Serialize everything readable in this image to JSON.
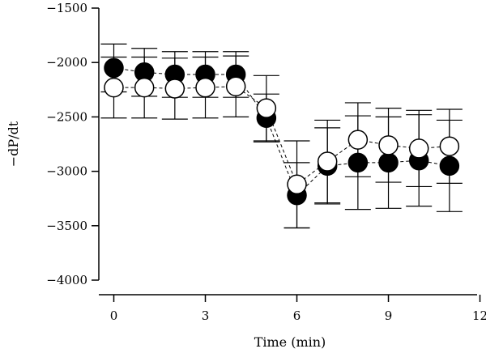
{
  "chart_data": {
    "type": "line",
    "title": "",
    "xlabel": "Time (min)",
    "ylabel": "−dP/dt",
    "xlim": [
      -0.5,
      12
    ],
    "ylim": [
      -4000,
      -1500
    ],
    "xticks": [
      0,
      3,
      6,
      9,
      12
    ],
    "xtick_labels": [
      "0",
      "3",
      "6",
      "9",
      "12"
    ],
    "yticks": [
      -1500,
      -2000,
      -2500,
      -3000,
      -3500,
      -4000
    ],
    "ytick_labels": [
      "−1500",
      "−2000",
      "−2500",
      "−3000",
      "−3500",
      "−4000"
    ],
    "grid": false,
    "legend": "none",
    "error_bars": true,
    "series": [
      {
        "marker": "filled-circle",
        "color": "#000000",
        "x": [
          0,
          1,
          2,
          3,
          4,
          5,
          6,
          7,
          8,
          9,
          10,
          11
        ],
        "y": [
          -2050,
          -2090,
          -2110,
          -2110,
          -2110,
          -2510,
          -3220,
          -2950,
          -2920,
          -2920,
          -2900,
          -2950
        ],
        "error": [
          220,
          220,
          210,
          210,
          210,
          220,
          300,
          350,
          430,
          420,
          420,
          420
        ]
      },
      {
        "marker": "open-circle",
        "color": "#000000",
        "x": [
          0,
          1,
          2,
          3,
          4,
          5,
          6,
          7,
          8,
          9,
          10,
          11
        ],
        "y": [
          -2230,
          -2230,
          -2240,
          -2230,
          -2220,
          -2420,
          -3120,
          -2910,
          -2710,
          -2760,
          -2790,
          -2770
        ],
        "error": [
          280,
          280,
          280,
          280,
          280,
          300,
          400,
          380,
          340,
          340,
          350,
          340
        ]
      }
    ]
  }
}
